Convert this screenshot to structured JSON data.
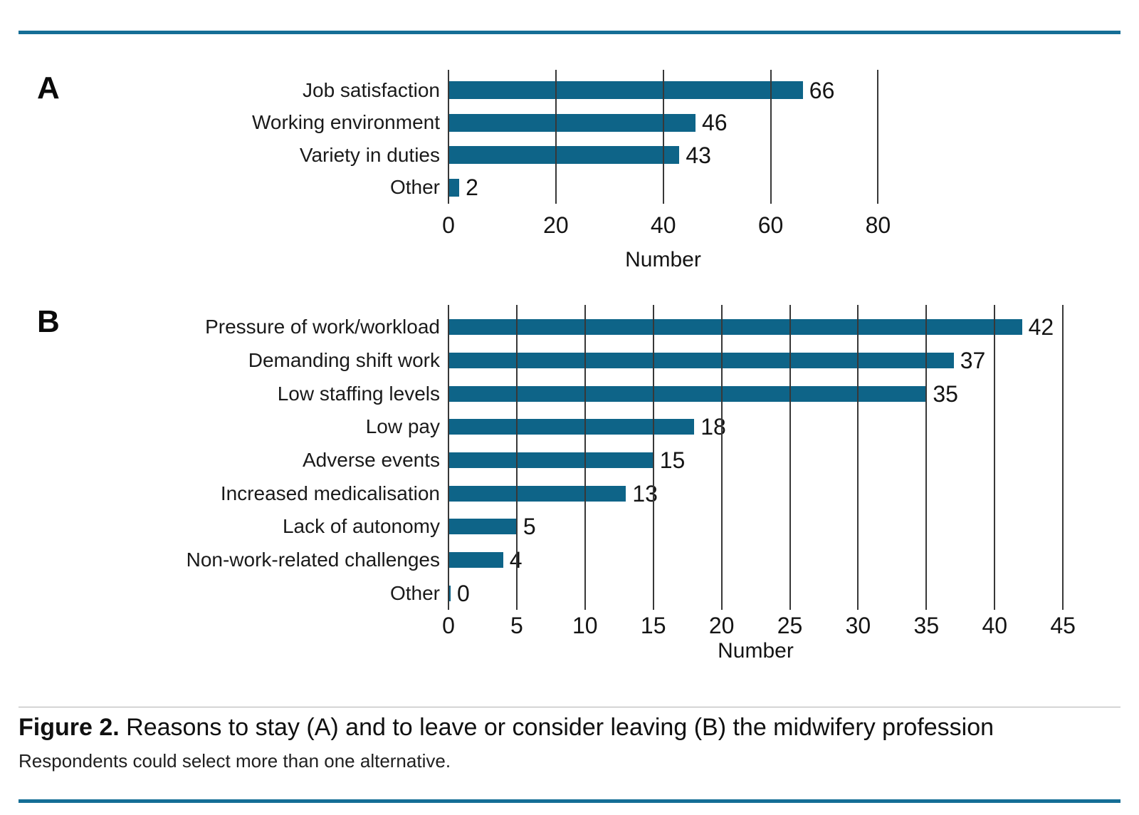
{
  "page": {
    "background": "#ffffff",
    "colors": {
      "bar": "#0e6488",
      "accent_rule": "#156e96",
      "gridline": "#383838",
      "hairline": "#b0b0b0",
      "text": "#1a1a1a"
    }
  },
  "caption": {
    "label": "Figure 2.",
    "title": " Reasons to stay (A) and to leave or consider leaving (B) the midwifery profession",
    "subtitle": "Respondents could select more than one alternative."
  },
  "chart_data": [
    {
      "type": "bar",
      "orientation": "horizontal",
      "panel": "A",
      "categories": [
        "Job satisfaction",
        "Working environment",
        "Variety in duties",
        "Other"
      ],
      "values": [
        66,
        46,
        43,
        2
      ],
      "xlabel": "Number",
      "xticks": [
        0,
        20,
        40,
        60,
        80
      ],
      "xlim": [
        0,
        118
      ],
      "grid": "vertical",
      "legend": "none",
      "bar_color": "#0e6488"
    },
    {
      "type": "bar",
      "orientation": "horizontal",
      "panel": "B",
      "categories": [
        "Pressure of work/workload",
        "Demanding shift work",
        "Low staffing levels",
        "Low pay",
        "Adverse events",
        "Increased medicalisation",
        "Lack of autonomy",
        "Non-work-related challenges",
        "Other"
      ],
      "values": [
        42,
        37,
        35,
        18,
        15,
        13,
        5,
        4,
        0
      ],
      "xlabel": "Number",
      "xticks": [
        0,
        5,
        10,
        15,
        20,
        25,
        30,
        35,
        40,
        45
      ],
      "xlim": [
        0,
        46.4
      ],
      "grid": "vertical",
      "legend": "none",
      "bar_color": "#0e6488"
    }
  ]
}
